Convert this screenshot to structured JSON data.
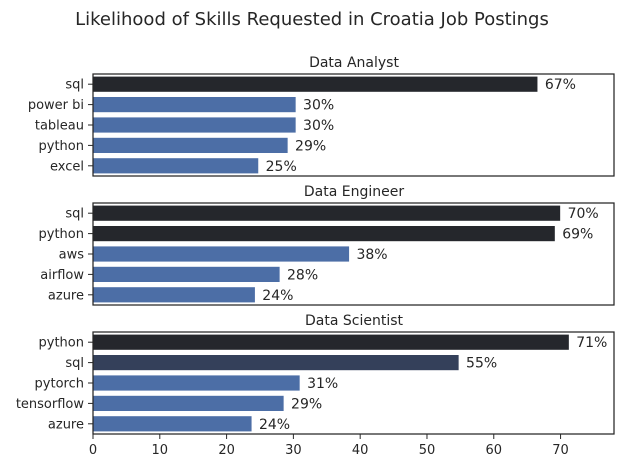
{
  "chart_data": {
    "type": "bar",
    "orientation": "horizontal",
    "title": "Likelihood of Skills Requested in Croatia Job Postings",
    "xlabel": "",
    "ylabel": "",
    "xlim": [
      0,
      78
    ],
    "xticks": [
      0,
      10,
      20,
      30,
      40,
      50,
      60,
      70
    ],
    "grid": false,
    "value_suffix": "%",
    "panels": [
      {
        "title": "Data Analyst",
        "categories": [
          "sql",
          "power bi",
          "tableau",
          "python",
          "excel"
        ],
        "values": [
          66.6,
          30.4,
          30.4,
          29.2,
          24.8
        ],
        "labels": [
          "67%",
          "30%",
          "30%",
          "29%",
          "25%"
        ]
      },
      {
        "title": "Data Engineer",
        "categories": [
          "sql",
          "python",
          "aws",
          "airflow",
          "azure"
        ],
        "values": [
          70.0,
          69.2,
          38.4,
          28.0,
          24.3
        ],
        "labels": [
          "70%",
          "69%",
          "38%",
          "28%",
          "24%"
        ]
      },
      {
        "title": "Data Scientist",
        "categories": [
          "python",
          "sql",
          "pytorch",
          "tensorflow",
          "azure"
        ],
        "values": [
          71.3,
          54.8,
          31.0,
          28.6,
          23.8
        ],
        "labels": [
          "71%",
          "55%",
          "31%",
          "29%",
          "24%"
        ]
      }
    ],
    "colors": {
      "dark": "#25272c",
      "mid": "#34405a",
      "light": "#4c6ea6",
      "bar_edge": "#ffffff"
    }
  }
}
